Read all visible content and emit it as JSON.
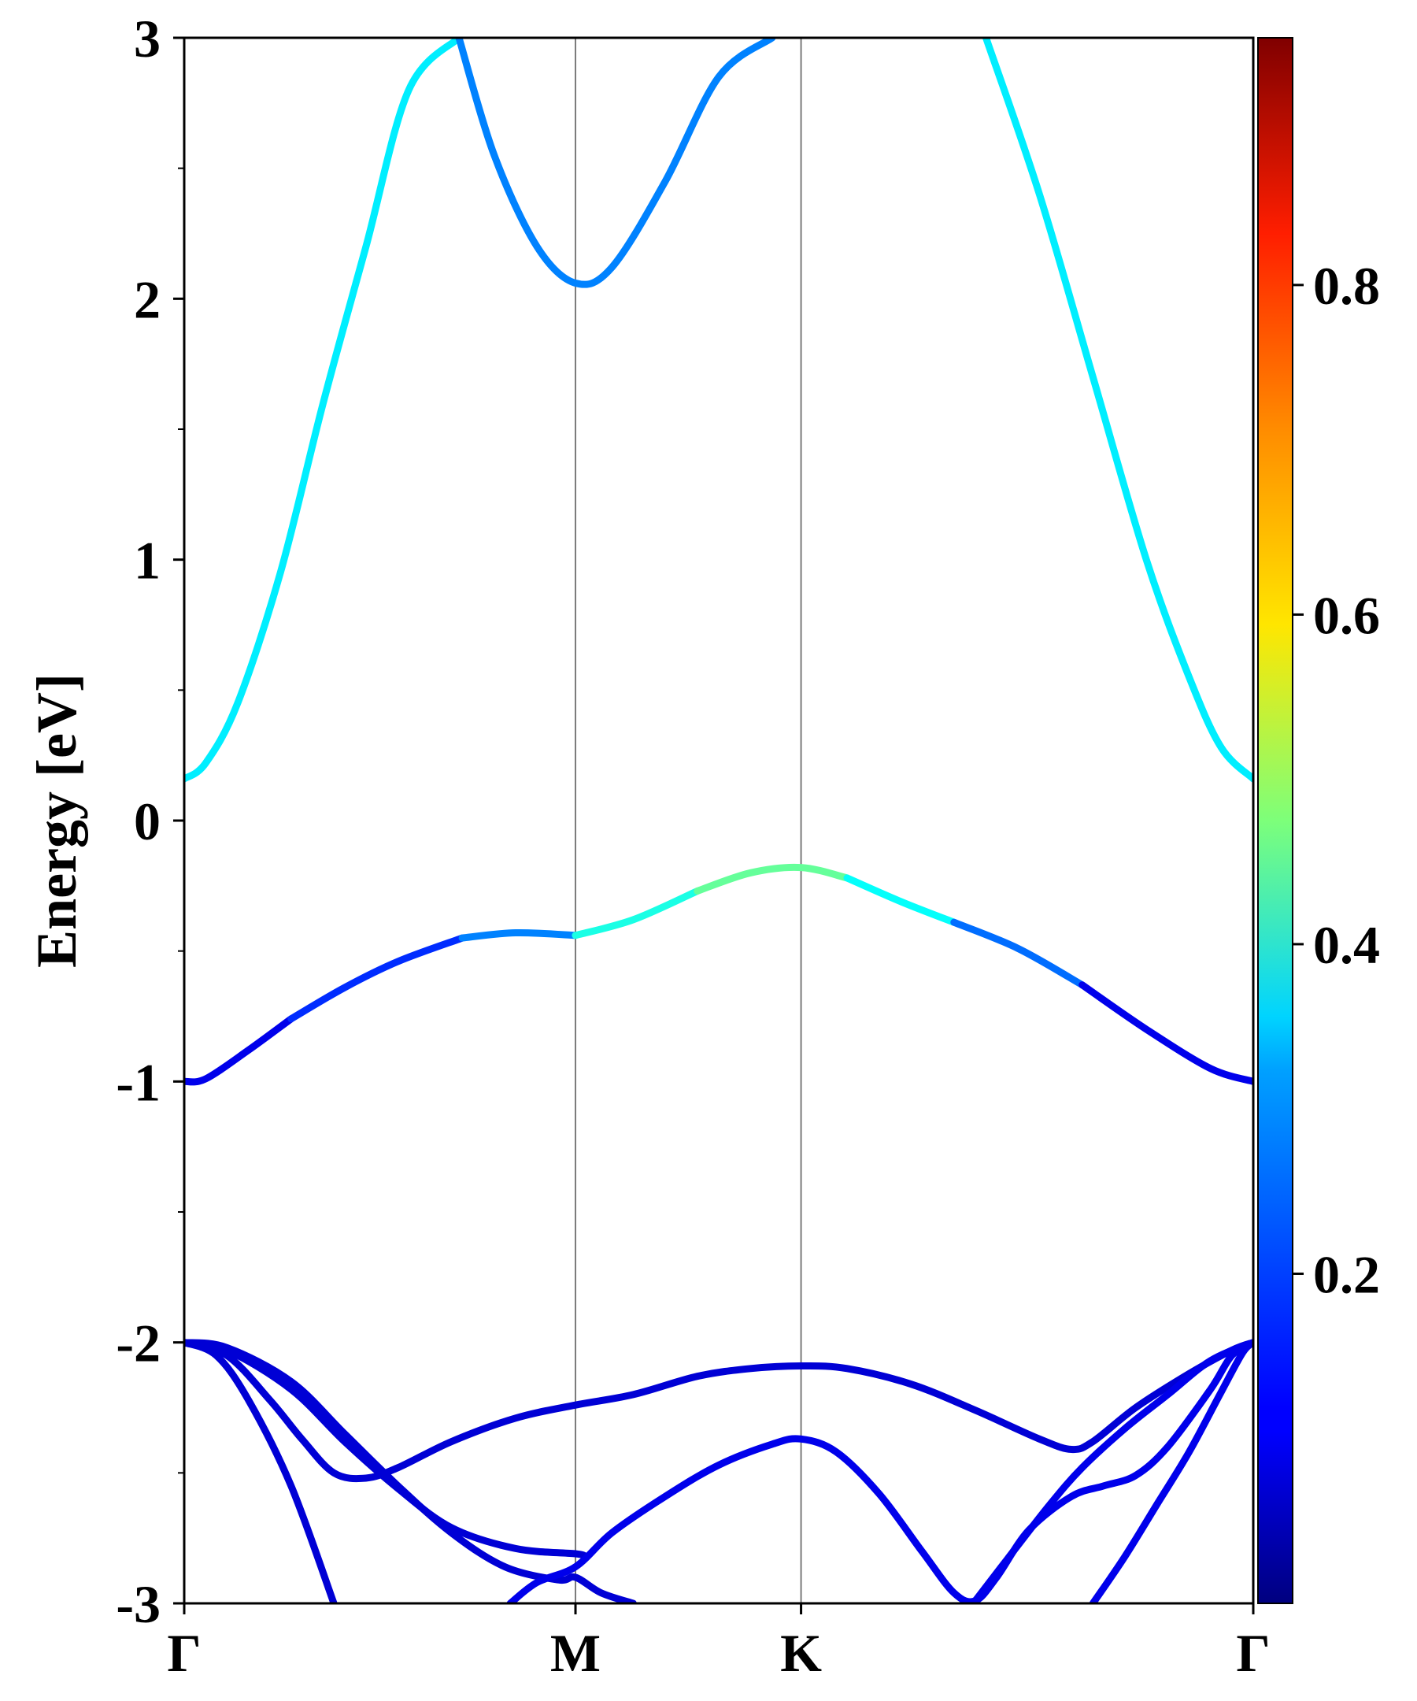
{
  "chart_data": {
    "type": "line",
    "title": "",
    "xlabel": "",
    "ylabel": "Energy [eV]",
    "ylim": [
      -3,
      3
    ],
    "xlim": [
      0,
      1
    ],
    "y_ticks": [
      {
        "value": 3,
        "label": "3"
      },
      {
        "value": 2,
        "label": "2"
      },
      {
        "value": 1,
        "label": "1"
      },
      {
        "value": 0,
        "label": "0"
      },
      {
        "value": -1,
        "label": "-1"
      },
      {
        "value": -2,
        "label": "-2"
      },
      {
        "value": -3,
        "label": "-3"
      }
    ],
    "k_points": [
      {
        "label": "Γ",
        "x": 0.0
      },
      {
        "label": "M",
        "x": 0.366
      },
      {
        "label": "K",
        "x": 0.577
      },
      {
        "label": "Γ",
        "x": 1.0
      }
    ],
    "colorbar": {
      "colormap": "jet",
      "range": [
        0.0,
        0.95
      ],
      "ticks": [
        {
          "value": 0.2,
          "label": "0.2"
        },
        {
          "value": 0.4,
          "label": "0.4"
        },
        {
          "value": 0.6,
          "label": "0.6"
        },
        {
          "value": 0.8,
          "label": "0.8"
        }
      ]
    },
    "bands": [
      {
        "name": "conduction-band-left",
        "weight": 0.34,
        "points": [
          [
            0.0,
            0.16
          ],
          [
            0.02,
            0.22
          ],
          [
            0.05,
            0.45
          ],
          [
            0.09,
            0.95
          ],
          [
            0.13,
            1.6
          ],
          [
            0.17,
            2.2
          ],
          [
            0.21,
            2.8
          ],
          [
            0.257,
            3.0
          ]
        ]
      },
      {
        "name": "conduction-band-mid",
        "weight": 0.24,
        "points": [
          [
            0.257,
            3.0
          ],
          [
            0.29,
            2.55
          ],
          [
            0.33,
            2.2
          ],
          [
            0.366,
            2.06
          ],
          [
            0.4,
            2.12
          ],
          [
            0.45,
            2.45
          ],
          [
            0.5,
            2.85
          ],
          [
            0.55,
            3.0
          ]
        ]
      },
      {
        "name": "conduction-band-right",
        "weight": 0.34,
        "points": [
          [
            0.75,
            3.0
          ],
          [
            0.8,
            2.4
          ],
          [
            0.85,
            1.7
          ],
          [
            0.9,
            1.0
          ],
          [
            0.94,
            0.55
          ],
          [
            0.97,
            0.28
          ],
          [
            1.0,
            0.16
          ]
        ]
      },
      {
        "name": "valence-band-top",
        "segments": [
          {
            "weight": 0.1,
            "points": [
              [
                0.0,
                -1.0
              ],
              [
                0.02,
                -0.99
              ],
              [
                0.06,
                -0.88
              ],
              [
                0.1,
                -0.76
              ]
            ]
          },
          {
            "weight": 0.16,
            "points": [
              [
                0.1,
                -0.76
              ],
              [
                0.15,
                -0.64
              ],
              [
                0.2,
                -0.54
              ],
              [
                0.26,
                -0.45
              ]
            ]
          },
          {
            "weight": 0.24,
            "points": [
              [
                0.26,
                -0.45
              ],
              [
                0.31,
                -0.43
              ],
              [
                0.366,
                -0.44
              ]
            ]
          },
          {
            "weight": 0.38,
            "points": [
              [
                0.366,
                -0.44
              ],
              [
                0.42,
                -0.38
              ],
              [
                0.48,
                -0.27
              ]
            ]
          },
          {
            "weight": 0.45,
            "points": [
              [
                0.48,
                -0.27
              ],
              [
                0.53,
                -0.2
              ],
              [
                0.577,
                -0.18
              ],
              [
                0.62,
                -0.22
              ]
            ]
          },
          {
            "weight": 0.36,
            "points": [
              [
                0.62,
                -0.22
              ],
              [
                0.67,
                -0.31
              ],
              [
                0.72,
                -0.39
              ]
            ]
          },
          {
            "weight": 0.22,
            "points": [
              [
                0.72,
                -0.39
              ],
              [
                0.78,
                -0.49
              ],
              [
                0.84,
                -0.63
              ]
            ]
          },
          {
            "weight": 0.1,
            "points": [
              [
                0.84,
                -0.63
              ],
              [
                0.9,
                -0.8
              ],
              [
                0.96,
                -0.95
              ],
              [
                1.0,
                -1.0
              ]
            ]
          }
        ]
      },
      {
        "name": "valence-band-2",
        "weight": 0.08,
        "points": [
          [
            0.0,
            -2.0
          ],
          [
            0.04,
            -2.03
          ],
          [
            0.1,
            -2.18
          ],
          [
            0.15,
            -2.38
          ],
          [
            0.2,
            -2.56
          ],
          [
            0.25,
            -2.71
          ],
          [
            0.31,
            -2.79
          ],
          [
            0.366,
            -2.81
          ],
          [
            0.375,
            -2.82
          ]
        ]
      },
      {
        "name": "valence-band-3",
        "weight": 0.08,
        "points": [
          [
            0.0,
            -2.0
          ],
          [
            0.04,
            -2.02
          ],
          [
            0.1,
            -2.15
          ],
          [
            0.15,
            -2.35
          ],
          [
            0.2,
            -2.55
          ],
          [
            0.25,
            -2.73
          ],
          [
            0.3,
            -2.86
          ],
          [
            0.35,
            -2.91
          ],
          [
            0.366,
            -2.9
          ],
          [
            0.39,
            -2.96
          ],
          [
            0.42,
            -3.0
          ]
        ]
      },
      {
        "name": "valence-band-4",
        "weight": 0.08,
        "points": [
          [
            0.0,
            -2.0
          ],
          [
            0.03,
            -2.05
          ],
          [
            0.06,
            -2.22
          ],
          [
            0.1,
            -2.55
          ],
          [
            0.14,
            -3.0
          ]
        ]
      },
      {
        "name": "valence-band-5",
        "weight": 0.08,
        "points": [
          [
            0.0,
            -2.0
          ],
          [
            0.04,
            -2.05
          ],
          [
            0.08,
            -2.22
          ],
          [
            0.11,
            -2.37
          ],
          [
            0.14,
            -2.5
          ],
          [
            0.17,
            -2.52
          ],
          [
            0.2,
            -2.48
          ],
          [
            0.25,
            -2.38
          ],
          [
            0.31,
            -2.29
          ],
          [
            0.366,
            -2.24
          ],
          [
            0.42,
            -2.2
          ],
          [
            0.48,
            -2.13
          ],
          [
            0.53,
            -2.1
          ],
          [
            0.577,
            -2.09
          ],
          [
            0.62,
            -2.1
          ],
          [
            0.68,
            -2.16
          ],
          [
            0.74,
            -2.26
          ],
          [
            0.8,
            -2.37
          ],
          [
            0.83,
            -2.41
          ],
          [
            0.85,
            -2.38
          ],
          [
            0.89,
            -2.25
          ],
          [
            0.94,
            -2.12
          ],
          [
            0.98,
            -2.03
          ],
          [
            1.0,
            -2.0
          ]
        ]
      },
      {
        "name": "valence-band-6",
        "weight": 0.1,
        "points": [
          [
            0.305,
            -3.0
          ],
          [
            0.33,
            -2.92
          ],
          [
            0.366,
            -2.86
          ],
          [
            0.4,
            -2.73
          ],
          [
            0.45,
            -2.59
          ],
          [
            0.5,
            -2.47
          ],
          [
            0.55,
            -2.39
          ],
          [
            0.577,
            -2.37
          ],
          [
            0.61,
            -2.42
          ],
          [
            0.65,
            -2.58
          ],
          [
            0.69,
            -2.8
          ],
          [
            0.72,
            -2.96
          ],
          [
            0.74,
            -2.99
          ],
          [
            0.76,
            -2.9
          ],
          [
            0.79,
            -2.72
          ],
          [
            0.83,
            -2.59
          ],
          [
            0.86,
            -2.55
          ],
          [
            0.89,
            -2.51
          ],
          [
            0.92,
            -2.4
          ],
          [
            0.96,
            -2.18
          ],
          [
            0.98,
            -2.05
          ],
          [
            1.0,
            -2.0
          ]
        ]
      },
      {
        "name": "valence-band-7",
        "weight": 0.1,
        "points": [
          [
            0.74,
            -2.99
          ],
          [
            0.77,
            -2.83
          ],
          [
            0.81,
            -2.62
          ],
          [
            0.84,
            -2.48
          ],
          [
            0.88,
            -2.33
          ],
          [
            0.92,
            -2.2
          ],
          [
            0.96,
            -2.07
          ],
          [
            1.0,
            -2.0
          ]
        ]
      },
      {
        "name": "valence-band-8",
        "weight": 0.1,
        "points": [
          [
            0.85,
            -3.0
          ],
          [
            0.88,
            -2.82
          ],
          [
            0.91,
            -2.62
          ],
          [
            0.94,
            -2.42
          ],
          [
            0.97,
            -2.19
          ],
          [
            0.99,
            -2.04
          ],
          [
            1.0,
            -2.0
          ]
        ]
      }
    ]
  }
}
